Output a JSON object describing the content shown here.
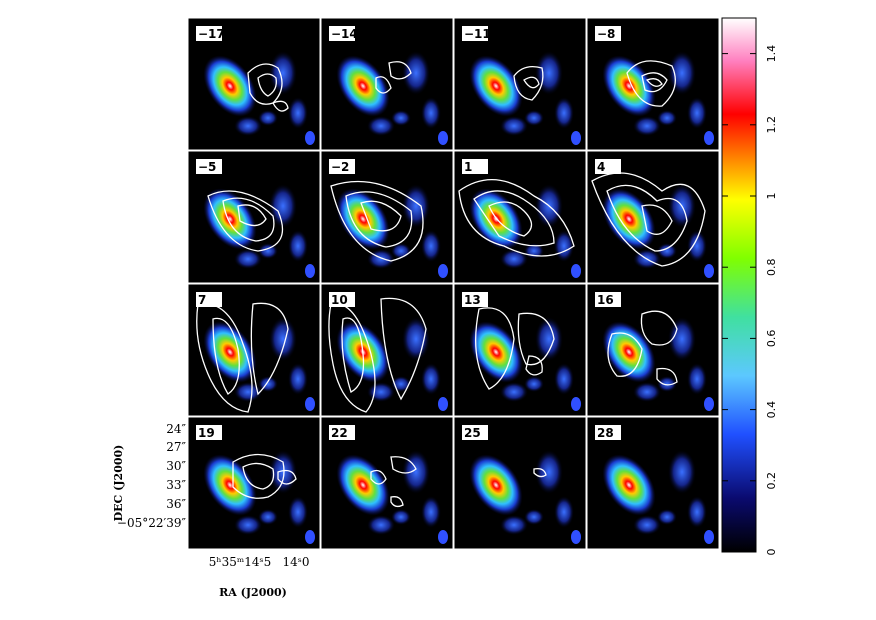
{
  "chart_data": {
    "type": "heatmap",
    "description_layout": "4x4 grid of channel maps",
    "panels": [
      {
        "velocity_label": "−17"
      },
      {
        "velocity_label": "−14"
      },
      {
        "velocity_label": "−11"
      },
      {
        "velocity_label": "−8"
      },
      {
        "velocity_label": "−5"
      },
      {
        "velocity_label": "−2"
      },
      {
        "velocity_label": "1"
      },
      {
        "velocity_label": "4"
      },
      {
        "velocity_label": "7"
      },
      {
        "velocity_label": "10"
      },
      {
        "velocity_label": "13"
      },
      {
        "velocity_label": "16"
      },
      {
        "velocity_label": "19"
      },
      {
        "velocity_label": "22"
      },
      {
        "velocity_label": "25"
      },
      {
        "velocity_label": "28"
      }
    ],
    "ylabel": "DEC (J2000)",
    "xlabel": "RA (J2000)",
    "yticks": [
      "24″",
      "27″",
      "30″",
      "33″",
      "36″",
      "−05°22′39″"
    ],
    "xticks": [
      "5ʰ35ᵐ14ˢ5",
      "14ˢ0"
    ],
    "colorbar": {
      "range": [
        0,
        1.5
      ],
      "ticks": [
        "0",
        "0.2",
        "0.4",
        "0.6",
        "0.8",
        "1",
        "1.2",
        "1.4"
      ],
      "tick_values": [
        0,
        0.2,
        0.4,
        0.6,
        0.8,
        1.0,
        1.2,
        1.4
      ],
      "colormap": [
        "#000000",
        "#0a0a6e",
        "#2050ff",
        "#5cc8ff",
        "#40e0a0",
        "#80ff00",
        "#ffff00",
        "#ff8000",
        "#ff0000",
        "#ff80c0",
        "#ffffff"
      ]
    },
    "contour_color": "#ffffff",
    "beam_color": "#3050ff"
  }
}
